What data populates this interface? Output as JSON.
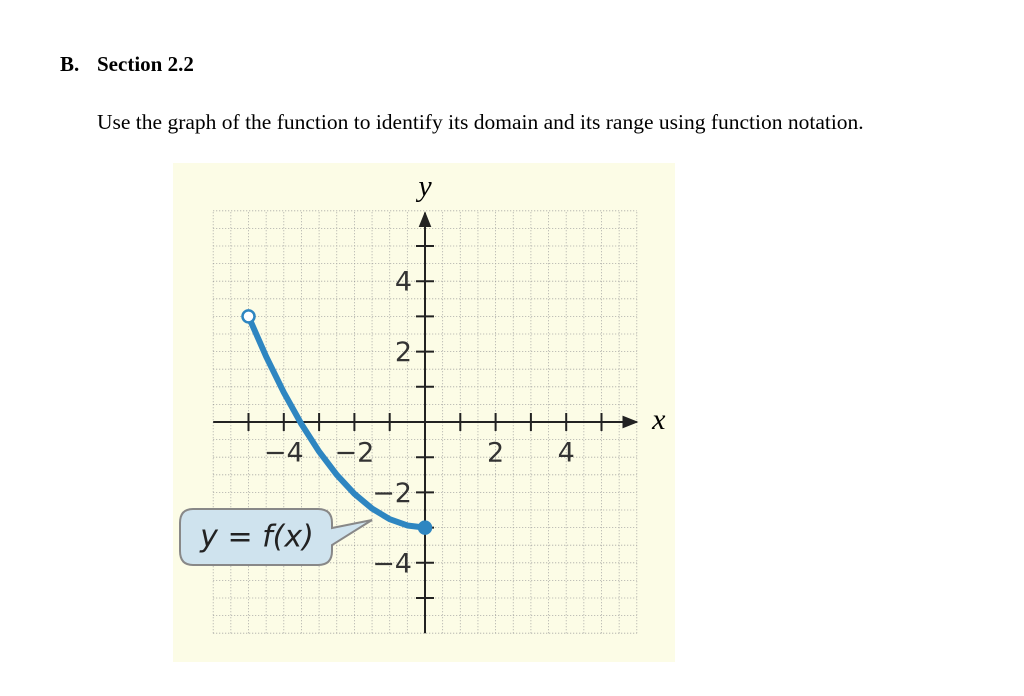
{
  "header": {
    "label": "B.",
    "title": "Section 2.2"
  },
  "instruction": "Use the graph of the function to identify its domain and its range using function notation.",
  "chart_data": {
    "type": "line",
    "xlabel": "x",
    "ylabel": "y",
    "xlim": [
      -6,
      6
    ],
    "ylim": [
      -6,
      6
    ],
    "xticks": [
      {
        "value": -4,
        "label": "−4"
      },
      {
        "value": -2,
        "label": "−2"
      },
      2,
      4
    ],
    "yticks": [
      {
        "value": -4,
        "label": "−4"
      },
      {
        "value": -2,
        "label": "−2"
      },
      2,
      4
    ],
    "minor_xticks": [
      -5,
      -3,
      -1,
      1,
      3,
      5
    ],
    "minor_yticks": [
      -5,
      -3,
      -1,
      1,
      3,
      5
    ],
    "grid_step": 0.5,
    "series": [
      {
        "name": "y = f(x)",
        "color": "#2e86c1",
        "x": [
          -5,
          -4.5,
          -4,
          -3.5,
          -3,
          -2.5,
          -2,
          -1.5,
          -1,
          -0.5,
          0
        ],
        "values": [
          3,
          1.86,
          0.84,
          -0.06,
          -0.84,
          -1.5,
          -2.04,
          -2.46,
          -2.76,
          -2.94,
          -3
        ],
        "start_marker": "open",
        "end_marker": "closed"
      }
    ]
  }
}
